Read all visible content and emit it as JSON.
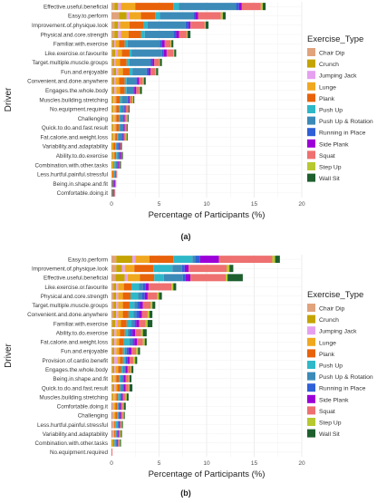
{
  "figure": {
    "panel_a_label": "(a)",
    "panel_b_label": "(b)"
  },
  "chart_data": [
    {
      "type": "bar",
      "orientation": "horizontal",
      "stacked": true,
      "xlabel": "Percentage of Participants (%)",
      "ylabel": "Driver",
      "xlim": [
        0,
        20
      ],
      "xticks": [
        0,
        5,
        10,
        15,
        20
      ],
      "grid": true,
      "legend_placement": "right",
      "legend_title": "Exercise_Type",
      "categories": [
        "Effective.useful.beneficial",
        "Easy.to.perform",
        "Improvement.of.physique.look",
        "Physical.and.core.strength",
        "Familiar.with.exercise",
        "Like.exercise.or.favourite",
        "Target.multiple.muscle.groups",
        "Fun.and.enjoyable",
        "Convenient.and.done.anywhere",
        "Engages.the.whole.body",
        "Muscles.building.stretching",
        "No.equipment.required",
        "Challenging",
        "Quick.to.do.and.fast.result",
        "Fat.calorie.and.weight.loss",
        "Variability.and.adaptability",
        "Ability.to.do.exercise",
        "Combination.with.other.tasks",
        "Less.hurtful.painful.stressful",
        "Being.in.shape.and.fit",
        "Comfortable.doing.it"
      ],
      "series": [
        {
          "name": "Chair Dip",
          "color": "#E0A37C",
          "values": [
            0.3,
            0.8,
            0.3,
            0.3,
            0.1,
            0.1,
            0.1,
            0.2,
            0.1,
            0.1,
            0.1,
            0.1,
            0.1,
            0.1,
            0.1,
            0,
            0.1,
            0,
            0,
            0,
            0
          ]
        },
        {
          "name": "Crunch",
          "color": "#C4A400",
          "values": [
            0.4,
            0.8,
            0.4,
            0.4,
            0.2,
            0.3,
            0.2,
            0.3,
            0.2,
            0.2,
            0.1,
            0.1,
            0.1,
            0.1,
            0.1,
            0.1,
            0.1,
            0.1,
            0,
            0,
            0
          ]
        },
        {
          "name": "Jumping Jack",
          "color": "#E6A0F0",
          "values": [
            0.3,
            0.3,
            0.2,
            0.3,
            0.1,
            0.2,
            0.1,
            0.2,
            0.1,
            0.2,
            0.1,
            0.1,
            0.1,
            0.1,
            0.1,
            0,
            0,
            0,
            0,
            0,
            0
          ]
        },
        {
          "name": "Lunge",
          "color": "#F0A820",
          "values": [
            1.5,
            1.2,
            1.0,
            0.8,
            0.4,
            0.5,
            0.5,
            0.5,
            0.4,
            0.4,
            0.2,
            0.2,
            0.2,
            0.2,
            0.1,
            0.1,
            0.1,
            0.1,
            0.1,
            0,
            0
          ]
        },
        {
          "name": "Plank",
          "color": "#E8620A",
          "values": [
            4.0,
            1.5,
            1.5,
            1.3,
            0.6,
            0.8,
            0.7,
            0.7,
            0.6,
            0.5,
            0.4,
            0.3,
            0.3,
            0.3,
            0.2,
            0.2,
            0.2,
            0.1,
            0.1,
            0.1,
            0.1
          ]
        },
        {
          "name": "Push Up",
          "color": "#2EB8C8",
          "values": [
            0.6,
            0.5,
            0.4,
            0.4,
            0.3,
            0.2,
            0.3,
            0.3,
            0.2,
            0.2,
            0.2,
            0.2,
            0.1,
            0.1,
            0.1,
            0.1,
            0.1,
            0.1,
            0.1,
            0,
            0
          ]
        },
        {
          "name": "Push Up & Rotation",
          "color": "#3C8AB8",
          "values": [
            6.0,
            3.5,
            4.0,
            3.0,
            3.4,
            3.2,
            2.2,
            1.5,
            1.0,
            0.7,
            0.6,
            0.3,
            0.3,
            0.3,
            0.4,
            0.2,
            0.2,
            0.2,
            0.1,
            0.1,
            0.1
          ]
        },
        {
          "name": "Running in Place",
          "color": "#3060D8",
          "values": [
            0.3,
            0.2,
            0.3,
            0.3,
            0.2,
            0.2,
            0.2,
            0.2,
            0.1,
            0.1,
            0.1,
            0.1,
            0.1,
            0.1,
            0.1,
            0.1,
            0.1,
            0.1,
            0.1,
            0.1,
            0.1
          ]
        },
        {
          "name": "Side Plank",
          "color": "#9C00D8",
          "values": [
            0.3,
            0.3,
            0.2,
            0.3,
            0.3,
            0.3,
            0.2,
            0.2,
            0.2,
            0.2,
            0.1,
            0.1,
            0.1,
            0.1,
            0.1,
            0.1,
            0.1,
            0.1,
            0,
            0.1,
            0
          ]
        },
        {
          "name": "Squat",
          "color": "#EE7070",
          "values": [
            2.0,
            2.4,
            1.5,
            0.8,
            0.6,
            0.7,
            0.5,
            0.5,
            0.4,
            0.3,
            0.3,
            0.3,
            0.2,
            0.2,
            0.2,
            0.1,
            0.1,
            0.1,
            0.1,
            0.1,
            0.1
          ]
        },
        {
          "name": "Step Up",
          "color": "#B8C830",
          "values": [
            0.2,
            0.2,
            0.1,
            0.1,
            0.1,
            0.1,
            0.1,
            0.1,
            0.1,
            0.1,
            0.1,
            0,
            0.1,
            0,
            0.1,
            0,
            0,
            0,
            0,
            0,
            0
          ]
        },
        {
          "name": "Wall Sit",
          "color": "#1E5F2E",
          "values": [
            0.3,
            0.3,
            0.3,
            0.3,
            0.2,
            0.2,
            0.2,
            0.2,
            0.2,
            0.2,
            0.1,
            0.1,
            0.1,
            0.1,
            0.1,
            0.1,
            0.1,
            0.1,
            0,
            0,
            0
          ]
        }
      ]
    },
    {
      "type": "bar",
      "orientation": "horizontal",
      "stacked": true,
      "xlabel": "Percentage of Participants (%)",
      "ylabel": "Driver",
      "xlim": [
        0,
        20
      ],
      "xticks": [
        0,
        5,
        10,
        15,
        20
      ],
      "grid": true,
      "legend_placement": "right",
      "legend_title": "Exercise_Type",
      "categories": [
        "Easy.to.perform",
        "Improvement.of.physique.look",
        "Effective.useful.beneficial",
        "Like.exercise.or.favourite",
        "Physical.and.core.strength",
        "Target.multiple.muscle.groups",
        "Convenient.and.done.anywhere",
        "Familiar.with.exercise",
        "Ability.to.do.exercise",
        "Fat.calorie.and.weight.loss",
        "Fun.and.enjoyable",
        "Provision.of.cardio.benefit",
        "Engages.the.whole.body",
        "Being.in.shape.and.fit",
        "Quick.to.do.and.fast.result",
        "Muscles.building.stretching",
        "Comfortable.doing.it",
        "Challenging",
        "Less.hurtful.painful.stressful",
        "Variability.and.adaptability",
        "Combination.with.other.tasks",
        "No.equipment.required"
      ],
      "series": [
        {
          "name": "Chair Dip",
          "color": "#E0A37C",
          "values": [
            0.5,
            0.5,
            0.4,
            0.2,
            0.2,
            0.2,
            0.2,
            0.1,
            0.1,
            0.1,
            0.1,
            0.1,
            0.1,
            0.1,
            0.1,
            0.1,
            0,
            0,
            0,
            0,
            0,
            0
          ]
        },
        {
          "name": "Crunch",
          "color": "#C4A400",
          "values": [
            1.7,
            0.6,
            1.0,
            0.3,
            0.3,
            0.3,
            0.3,
            0.3,
            0.2,
            0.2,
            0.2,
            0.2,
            0.2,
            0.1,
            0.2,
            0.1,
            0.1,
            0.1,
            0.1,
            0.1,
            0.1,
            0
          ]
        },
        {
          "name": "Jumping Jack",
          "color": "#E6A0F0",
          "values": [
            0.3,
            0.3,
            0.3,
            0.2,
            0.2,
            0.2,
            0.2,
            0.2,
            0.2,
            0.2,
            0.2,
            0.3,
            0.1,
            0.1,
            0.1,
            0.1,
            0.1,
            0.1,
            0.1,
            0.1,
            0,
            0
          ]
        },
        {
          "name": "Lunge",
          "color": "#F0A820",
          "values": [
            1.5,
            1.0,
            1.3,
            0.6,
            0.5,
            0.5,
            0.5,
            0.4,
            0.4,
            0.3,
            0.3,
            0.3,
            0.3,
            0.2,
            0.2,
            0.2,
            0.2,
            0.2,
            0.1,
            0.1,
            0.1,
            0
          ]
        },
        {
          "name": "Plank",
          "color": "#E8620A",
          "values": [
            2.5,
            2.0,
            1.5,
            0.8,
            0.8,
            0.7,
            0.6,
            0.6,
            0.5,
            0.5,
            0.4,
            0.3,
            0.3,
            0.3,
            0.3,
            0.2,
            0.2,
            0.2,
            0.1,
            0.1,
            0.1,
            0
          ]
        },
        {
          "name": "Push Up",
          "color": "#2EB8C8",
          "values": [
            2.0,
            2.0,
            1.0,
            0.8,
            0.8,
            0.5,
            0.5,
            0.5,
            0.3,
            0.6,
            0.2,
            0.2,
            0.2,
            0.2,
            0.1,
            0.2,
            0.1,
            0.1,
            0.2,
            0.1,
            0.1,
            0
          ]
        },
        {
          "name": "Push Up & Rotation",
          "color": "#3C8AB8",
          "values": [
            0.3,
            1.0,
            2.0,
            0.4,
            0.4,
            0.3,
            0.3,
            0.3,
            0.2,
            0.3,
            0.2,
            0.1,
            0.2,
            0.2,
            0.2,
            0.1,
            0.1,
            0.1,
            0.1,
            0.1,
            0.1,
            0
          ]
        },
        {
          "name": "Running in Place",
          "color": "#3060D8",
          "values": [
            0.5,
            0.3,
            0.3,
            0.3,
            0.3,
            0.3,
            0.3,
            0.2,
            0.3,
            0.2,
            0.2,
            0.2,
            0.1,
            0.1,
            0.1,
            0.1,
            0.1,
            0.1,
            0.1,
            0.1,
            0.1,
            0
          ]
        },
        {
          "name": "Side Plank",
          "color": "#9C00D8",
          "values": [
            2.0,
            0.4,
            0.5,
            0.3,
            0.3,
            0.3,
            0.3,
            0.3,
            0.3,
            0.3,
            0.3,
            0.2,
            0.2,
            0.2,
            0.2,
            0.1,
            0.1,
            0.1,
            0.1,
            0.1,
            0.1,
            0
          ]
        },
        {
          "name": "Squat",
          "color": "#EE7070",
          "values": [
            5.6,
            4.0,
            3.7,
            2.4,
            1.0,
            0.8,
            0.6,
            0.7,
            0.6,
            0.6,
            0.5,
            0.4,
            0.3,
            0.3,
            0.3,
            0.3,
            0.2,
            0.2,
            0.1,
            0.1,
            0.1,
            0.1
          ]
        },
        {
          "name": "Step Up",
          "color": "#B8C830",
          "values": [
            0.3,
            0.3,
            0.2,
            0.2,
            0.2,
            0.2,
            0.2,
            0.2,
            0.2,
            0.2,
            0.2,
            0.2,
            0.1,
            0.1,
            0.1,
            0.1,
            0.1,
            0.1,
            0.1,
            0.1,
            0.1,
            0
          ]
        },
        {
          "name": "Wall Sit",
          "color": "#1E5F2E",
          "values": [
            0.5,
            0.4,
            1.6,
            0.3,
            0.3,
            0.3,
            0.3,
            0.5,
            0.4,
            0.2,
            0.2,
            0.2,
            0.2,
            0.2,
            0.3,
            0.2,
            0.2,
            0.1,
            0.1,
            0.1,
            0.1,
            0
          ]
        }
      ]
    }
  ]
}
